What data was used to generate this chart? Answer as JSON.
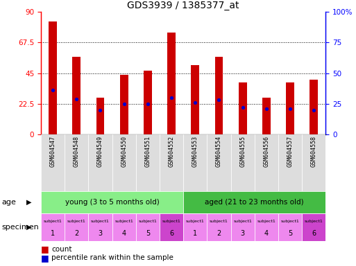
{
  "title": "GDS3939 / 1385377_at",
  "gsm_labels": [
    "GSM604547",
    "GSM604548",
    "GSM604549",
    "GSM604550",
    "GSM604551",
    "GSM604552",
    "GSM604553",
    "GSM604554",
    "GSM604555",
    "GSM604556",
    "GSM604557",
    "GSM604558"
  ],
  "counts": [
    83,
    57,
    27,
    44,
    47,
    75,
    51,
    57,
    38,
    27,
    38,
    40
  ],
  "percentile_ranks": [
    36,
    29,
    20,
    25,
    25,
    30,
    26,
    28,
    22,
    21,
    21,
    20
  ],
  "ylim_left": [
    0,
    90
  ],
  "ylim_right": [
    0,
    100
  ],
  "yticks_left": [
    0,
    22.5,
    45,
    67.5,
    90
  ],
  "yticks_right": [
    0,
    25,
    50,
    75,
    100
  ],
  "ytick_labels_left": [
    "0",
    "22.5",
    "45",
    "67.5",
    "90"
  ],
  "ytick_labels_right": [
    "0",
    "25",
    "50",
    "75",
    "100%"
  ],
  "bar_color": "#cc0000",
  "dot_color": "#0000cc",
  "age_young_label": "young (3 to 5 months old)",
  "age_aged_label": "aged (21 to 23 months old)",
  "age_young_color": "#88ee88",
  "age_aged_color": "#44bb44",
  "specimen_color_light": "#ee88ee",
  "specimen_color_dark": "#cc44cc",
  "specimen_labels_top": [
    "subject1",
    "subject1",
    "subject1",
    "subject1",
    "subject1",
    "subject1",
    "subject1",
    "subject1",
    "subject1",
    "subject1",
    "subject1",
    "subject1"
  ],
  "specimen_numbers": [
    "1",
    "2",
    "3",
    "4",
    "5",
    "6",
    "1",
    "2",
    "3",
    "4",
    "5",
    "6"
  ],
  "legend_count_label": "count",
  "legend_pct_label": "percentile rank within the sample",
  "bar_width": 0.35
}
